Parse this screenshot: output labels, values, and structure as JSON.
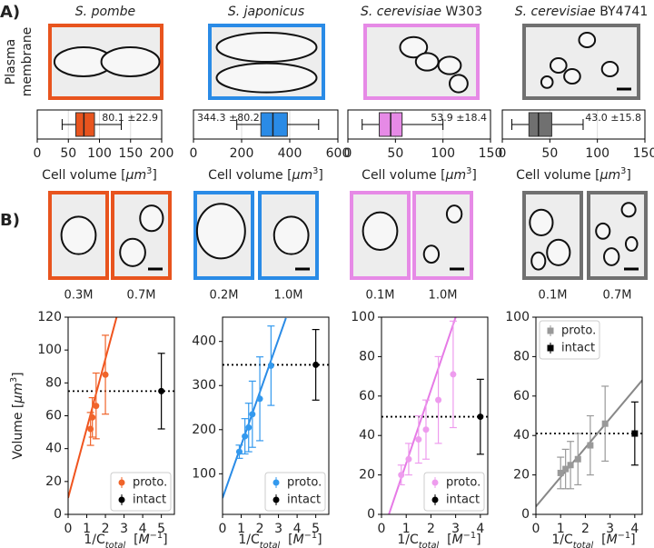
{
  "figure": {
    "panel_labels": [
      "A)",
      "B)"
    ],
    "row_label": [
      "Plasma",
      "membrane"
    ],
    "conditions": [
      [
        "0.3M",
        "0.7M"
      ],
      [
        "0.2M",
        "1.0M"
      ],
      [
        "0.1M",
        "1.0M"
      ],
      [
        "0.1M",
        "0.7M"
      ]
    ]
  },
  "chart_data": [
    {
      "type": "box",
      "title": [
        {
          "text": "S. pombe",
          "italic": true
        }
      ],
      "color": "#e8541e",
      "xlim": [
        0,
        200
      ],
      "xticks": [
        0,
        50,
        100,
        150,
        200
      ],
      "grid": true,
      "box": {
        "whislo": 40,
        "q1": 62,
        "med": 75,
        "q3": 92,
        "whishi": 135
      },
      "annotation": "80.1 ±22.9",
      "annotation_loc": "upper right",
      "xlabel": [
        {
          "text": "Cell volume ["
        },
        {
          "text": "μm",
          "italic": true
        },
        {
          "text": "3",
          "sup": true
        },
        {
          "text": "]"
        }
      ]
    },
    {
      "type": "box",
      "title": [
        {
          "text": "S. japonicus",
          "italic": true
        }
      ],
      "color": "#2a8be6",
      "xlim": [
        0,
        600
      ],
      "xticks": [
        0,
        200,
        400,
        600
      ],
      "grid": true,
      "box": {
        "whislo": 180,
        "q1": 280,
        "med": 330,
        "q3": 390,
        "whishi": 520
      },
      "annotation": "344.3 ±80.2",
      "annotation_loc": "upper left",
      "xlabel": [
        {
          "text": "Cell volume ["
        },
        {
          "text": "μm",
          "italic": true
        },
        {
          "text": "3",
          "sup": true
        },
        {
          "text": "]"
        }
      ]
    },
    {
      "type": "box",
      "title": [
        {
          "text": "S. cerevisiae",
          "italic": true
        },
        {
          "text": " W303"
        }
      ],
      "color": "#e68ae6",
      "xlim": [
        0,
        150
      ],
      "xticks": [
        0,
        50,
        100,
        150
      ],
      "grid": true,
      "box": {
        "whislo": 15,
        "q1": 33,
        "med": 45,
        "q3": 57,
        "whishi": 100
      },
      "annotation": "53.9 ±18.4",
      "annotation_loc": "upper right",
      "xlabel": [
        {
          "text": "Cell volume ["
        },
        {
          "text": "μm",
          "italic": true
        },
        {
          "text": "3",
          "sup": true
        },
        {
          "text": "]"
        }
      ]
    },
    {
      "type": "box",
      "title": [
        {
          "text": "S. cerevisiae",
          "italic": true
        },
        {
          "text": " BY4741"
        }
      ],
      "color": "#707070",
      "xlim": [
        0,
        150
      ],
      "xticks": [
        0,
        50,
        100,
        150
      ],
      "grid": true,
      "box": {
        "whislo": 10,
        "q1": 28,
        "med": 38,
        "q3": 52,
        "whishi": 85
      },
      "annotation": "43.0 ±15.8",
      "annotation_loc": "upper right",
      "xlabel": [
        {
          "text": "Cell volume ["
        },
        {
          "text": "μm",
          "italic": true
        },
        {
          "text": "3",
          "sup": true
        },
        {
          "text": "]"
        }
      ]
    },
    {
      "type": "scatter",
      "xlim": [
        0,
        5.7
      ],
      "xticks": [
        0,
        1,
        2,
        3,
        4,
        5
      ],
      "ylim": [
        0,
        120
      ],
      "yticks": [
        0,
        20,
        40,
        60,
        80,
        100,
        120
      ],
      "marker": "o",
      "legend_loc": "lower right",
      "ylabel": [
        {
          "text": "Volume ["
        },
        {
          "text": "μm",
          "italic": true
        },
        {
          "text": "3",
          "sup": true
        },
        {
          "text": "]"
        }
      ],
      "xlabel": [
        {
          "text": "1/C"
        },
        {
          "text": "total",
          "sub": true,
          "italic": true
        },
        {
          "text": "  ["
        },
        {
          "text": "M",
          "italic": true
        },
        {
          "text": "−1",
          "sup": true
        },
        {
          "text": "]"
        }
      ],
      "series": [
        {
          "name": "proto.",
          "color": "#f0642a",
          "x": [
            1.2,
            1.3,
            1.5,
            2.0
          ],
          "values": [
            52,
            59,
            66,
            85
          ],
          "errors": [
            10,
            12,
            20,
            24
          ]
        },
        {
          "name": "intact",
          "color": "#000000",
          "x": [
            5
          ],
          "values": [
            75
          ],
          "errors": [
            23
          ]
        }
      ],
      "fit": {
        "color": "#f0541e",
        "x": [
          0,
          2.6
        ],
        "values": [
          10,
          120
        ]
      }
    },
    {
      "type": "scatter",
      "xlim": [
        0,
        5.7
      ],
      "xticks": [
        0,
        1,
        2,
        3,
        4,
        5
      ],
      "ylim": [
        8,
        455
      ],
      "yticks": [
        100,
        200,
        300,
        400
      ],
      "marker": "o",
      "legend_loc": "lower right",
      "xlabel": [
        {
          "text": "1/C"
        },
        {
          "text": "total",
          "sub": true,
          "italic": true
        },
        {
          "text": "  ["
        },
        {
          "text": "M",
          "italic": true
        },
        {
          "text": "−1",
          "sup": true
        },
        {
          "text": "]"
        }
      ],
      "series": [
        {
          "name": "proto.",
          "color": "#3399ee",
          "x": [
            0.9,
            1.2,
            1.4,
            1.6,
            2.0,
            2.6
          ],
          "values": [
            150,
            185,
            205,
            235,
            270,
            345
          ],
          "errors": [
            15,
            40,
            55,
            75,
            95,
            90
          ]
        },
        {
          "name": "intact",
          "color": "#000000",
          "x": [
            5
          ],
          "values": [
            347
          ],
          "errors": [
            80
          ]
        }
      ],
      "fit": {
        "color": "#2a8be6",
        "x": [
          0,
          3.4
        ],
        "values": [
          45,
          453
        ]
      }
    },
    {
      "type": "scatter",
      "xlim": [
        0,
        4.3
      ],
      "xticks": [
        0,
        1,
        2,
        3,
        4
      ],
      "ylim": [
        0,
        100
      ],
      "yticks": [
        0,
        20,
        40,
        60,
        80,
        100
      ],
      "marker": "o",
      "legend_loc": "lower right",
      "xlabel": [
        {
          "text": "1/C"
        },
        {
          "text": "total",
          "sub": true,
          "italic": true
        },
        {
          "text": "  ["
        },
        {
          "text": "M",
          "italic": true
        },
        {
          "text": "−1",
          "sup": true
        },
        {
          "text": "]"
        }
      ],
      "series": [
        {
          "name": "proto.",
          "color": "#ee9cee",
          "x": [
            0.8,
            1.1,
            1.5,
            1.8,
            2.3,
            2.9
          ],
          "values": [
            20,
            28,
            38,
            43,
            58,
            71
          ],
          "errors": [
            5,
            8,
            12,
            15,
            22,
            27
          ]
        },
        {
          "name": "intact",
          "color": "#000000",
          "x": [
            4
          ],
          "values": [
            49.5
          ],
          "errors": [
            19
          ]
        }
      ],
      "fit": {
        "color": "#e67ae6",
        "x": [
          0.3,
          3.0
        ],
        "values": [
          0,
          100
        ]
      }
    },
    {
      "type": "scatter",
      "xlim": [
        0,
        4.3
      ],
      "xticks": [
        0,
        1,
        2,
        3,
        4
      ],
      "ylim": [
        0,
        100
      ],
      "yticks": [
        0,
        20,
        40,
        60,
        80,
        100
      ],
      "marker": "s",
      "legend_loc": "upper left",
      "xlabel": [
        {
          "text": "1/C"
        },
        {
          "text": "total",
          "sub": true,
          "italic": true
        },
        {
          "text": "  ["
        },
        {
          "text": "M",
          "italic": true
        },
        {
          "text": "−1",
          "sup": true
        },
        {
          "text": "]"
        }
      ],
      "series": [
        {
          "name": "proto.",
          "color": "#999999",
          "x": [
            1.0,
            1.2,
            1.4,
            1.7,
            2.2,
            2.8
          ],
          "values": [
            21,
            23,
            25,
            28,
            35,
            46
          ],
          "errors": [
            8,
            10,
            12,
            13,
            15,
            19
          ]
        },
        {
          "name": "intact",
          "color": "#000000",
          "x": [
            4
          ],
          "values": [
            41
          ],
          "errors": [
            16
          ]
        }
      ],
      "fit": {
        "color": "#888888",
        "x": [
          0,
          4.3
        ],
        "values": [
          4,
          68
        ]
      }
    }
  ]
}
